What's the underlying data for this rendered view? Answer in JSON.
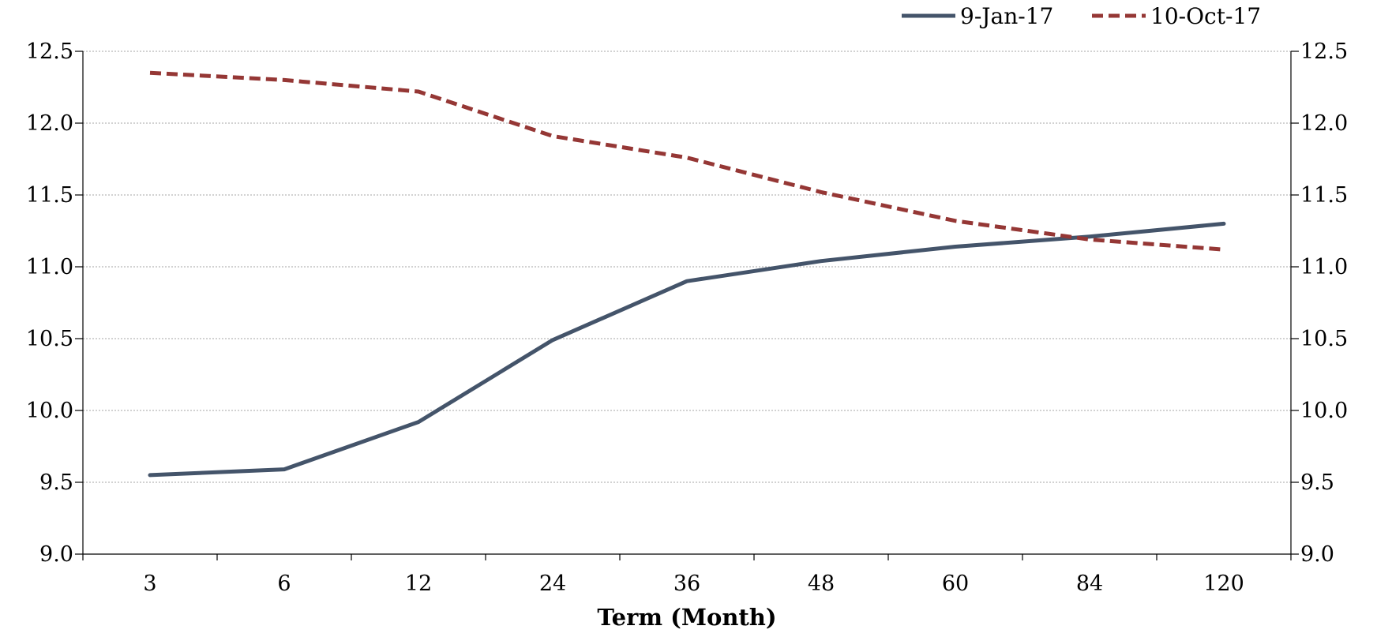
{
  "chart_data": {
    "type": "line",
    "title": "",
    "xlabel": "Term (Month)",
    "ylabel": "",
    "categories": [
      "3",
      "6",
      "12",
      "24",
      "36",
      "48",
      "60",
      "84",
      "120"
    ],
    "ylim": [
      9.0,
      12.5
    ],
    "yticks": [
      "9.0",
      "9.5",
      "10.0",
      "10.5",
      "11.0",
      "11.5",
      "12.0",
      "12.5"
    ],
    "secondary_axis": true,
    "grid": "horizontal-dotted",
    "legend_position": "top-right",
    "series": [
      {
        "name": "9-Jan-17",
        "color": "#44546a",
        "style": "solid",
        "values": [
          9.55,
          9.59,
          9.92,
          10.49,
          10.9,
          11.04,
          11.14,
          11.21,
          11.3
        ]
      },
      {
        "name": "10-Oct-17",
        "color": "#953735",
        "style": "dashed",
        "values": [
          12.35,
          12.3,
          12.22,
          11.91,
          11.76,
          11.52,
          11.32,
          11.19,
          11.12
        ]
      }
    ]
  }
}
